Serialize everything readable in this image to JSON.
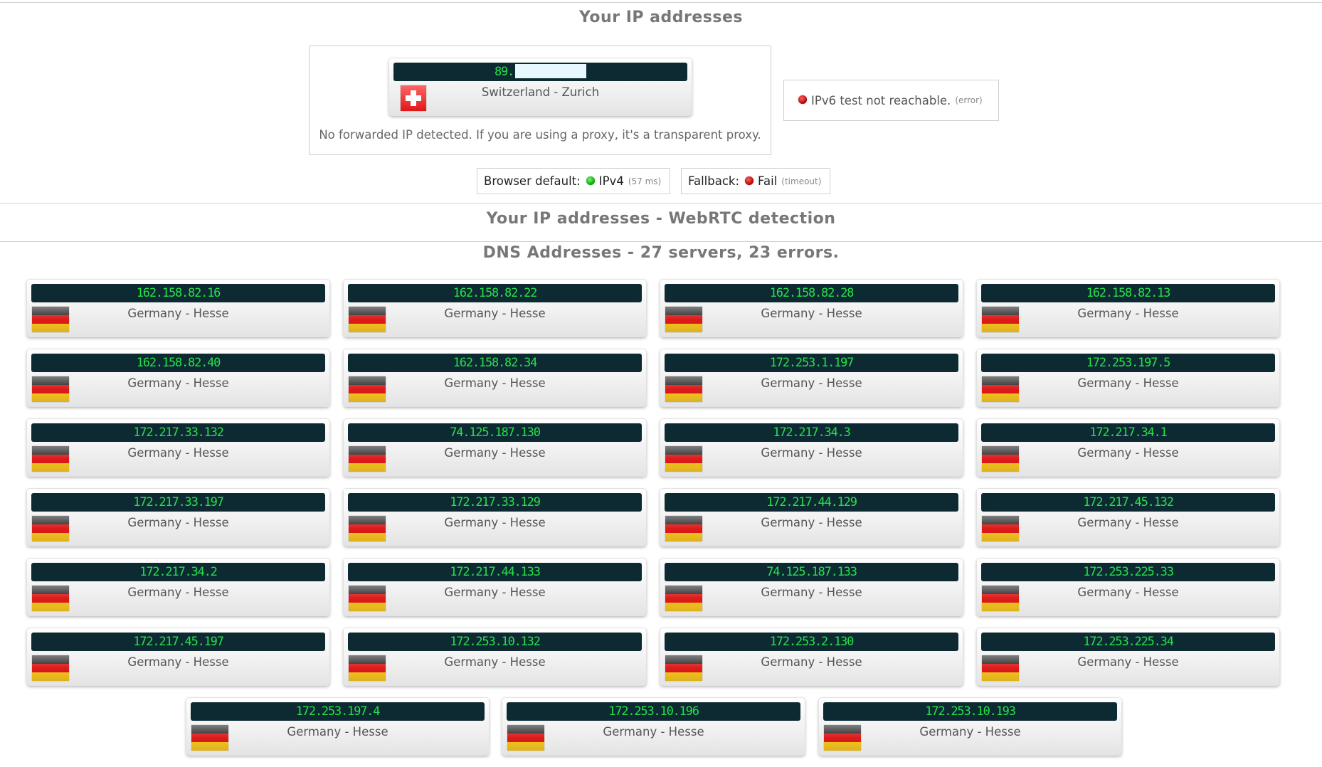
{
  "header": {
    "title": "Your IP addresses"
  },
  "main_ip": {
    "ip_prefix": "89.",
    "location": "Switzerland - Zurich",
    "flag": "flag-switzerland",
    "note": "No forwarded IP detected. If you are using a proxy, it's a transparent proxy."
  },
  "ipv6": {
    "text": "IPv6 test not reachable.",
    "detail": "(error)",
    "status_color": "#cc0000"
  },
  "browser_default": {
    "label": "Browser default:",
    "value": "IPv4",
    "detail": "(57 ms)",
    "status_color": "#11aa11"
  },
  "fallback": {
    "label": "Fallback:",
    "value": "Fail",
    "detail": "(timeout)",
    "status_color": "#cc0000"
  },
  "webrtc": {
    "title": "Your IP addresses - WebRTC detection"
  },
  "dns": {
    "title": "DNS Addresses - 27 servers, 23 errors.",
    "servers": [
      {
        "ip": "162.158.82.16",
        "location": "Germany - Hesse"
      },
      {
        "ip": "162.158.82.22",
        "location": "Germany - Hesse"
      },
      {
        "ip": "162.158.82.28",
        "location": "Germany - Hesse"
      },
      {
        "ip": "162.158.82.13",
        "location": "Germany - Hesse"
      },
      {
        "ip": "162.158.82.40",
        "location": "Germany - Hesse"
      },
      {
        "ip": "162.158.82.34",
        "location": "Germany - Hesse"
      },
      {
        "ip": "172.253.1.197",
        "location": "Germany - Hesse"
      },
      {
        "ip": "172.253.197.5",
        "location": "Germany - Hesse"
      },
      {
        "ip": "172.217.33.132",
        "location": "Germany - Hesse"
      },
      {
        "ip": "74.125.187.130",
        "location": "Germany - Hesse"
      },
      {
        "ip": "172.217.34.3",
        "location": "Germany - Hesse"
      },
      {
        "ip": "172.217.34.1",
        "location": "Germany - Hesse"
      },
      {
        "ip": "172.217.33.197",
        "location": "Germany - Hesse"
      },
      {
        "ip": "172.217.33.129",
        "location": "Germany - Hesse"
      },
      {
        "ip": "172.217.44.129",
        "location": "Germany - Hesse"
      },
      {
        "ip": "172.217.45.132",
        "location": "Germany - Hesse"
      },
      {
        "ip": "172.217.34.2",
        "location": "Germany - Hesse"
      },
      {
        "ip": "172.217.44.133",
        "location": "Germany - Hesse"
      },
      {
        "ip": "74.125.187.133",
        "location": "Germany - Hesse"
      },
      {
        "ip": "172.253.225.33",
        "location": "Germany - Hesse"
      },
      {
        "ip": "172.217.45.197",
        "location": "Germany - Hesse"
      },
      {
        "ip": "172.253.10.132",
        "location": "Germany - Hesse"
      },
      {
        "ip": "172.253.2.130",
        "location": "Germany - Hesse"
      },
      {
        "ip": "172.253.225.34",
        "location": "Germany - Hesse"
      },
      {
        "ip": "172.253.197.4",
        "location": "Germany - Hesse"
      },
      {
        "ip": "172.253.10.196",
        "location": "Germany - Hesse"
      },
      {
        "ip": "172.253.10.193",
        "location": "Germany - Hesse"
      }
    ]
  }
}
